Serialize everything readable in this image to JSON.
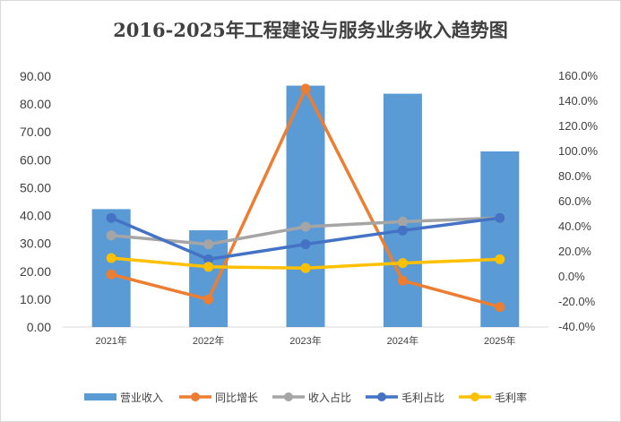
{
  "chart_data": {
    "type": "bar",
    "title": "2016-2025年工程建设与服务业务收入趋势图",
    "categories": [
      "2021年",
      "2022年",
      "2023年",
      "2024年",
      "2025年"
    ],
    "left_axis": {
      "ylim": [
        0,
        90
      ],
      "ticks": [
        "0.00",
        "10.00",
        "20.00",
        "30.00",
        "40.00",
        "50.00",
        "60.00",
        "70.00",
        "80.00",
        "90.00"
      ]
    },
    "right_axis": {
      "ylim": [
        -0.4,
        1.6
      ],
      "ticks": [
        "-40.0%",
        "-20.0%",
        "0.0%",
        "20.0%",
        "40.0%",
        "60.0%",
        "80.0%",
        "100.0%",
        "120.0%",
        "140.0%",
        "160.0%"
      ]
    },
    "series": [
      {
        "name": "营业收入",
        "type": "bar",
        "axis": "left",
        "color": "#5b9bd5",
        "values": [
          42.3,
          34.7,
          86.6,
          83.7,
          63.0
        ]
      },
      {
        "name": "同比增长",
        "type": "line",
        "axis": "right",
        "color": "#ed7d31",
        "values": [
          0.02,
          -0.18,
          1.5,
          -0.03,
          -0.24
        ]
      },
      {
        "name": "收入占比",
        "type": "line",
        "axis": "right",
        "color": "#a5a5a5",
        "values": [
          0.33,
          0.26,
          0.4,
          0.44,
          0.47
        ]
      },
      {
        "name": "毛利占比",
        "type": "line",
        "axis": "right",
        "color": "#4472c4",
        "values": [
          0.47,
          0.14,
          0.26,
          0.37,
          0.47
        ]
      },
      {
        "name": "毛利率",
        "type": "line",
        "axis": "right",
        "color": "#ffc000",
        "values": [
          0.15,
          0.08,
          0.07,
          0.11,
          0.14
        ]
      }
    ],
    "grid": false,
    "legend_position": "bottom"
  }
}
